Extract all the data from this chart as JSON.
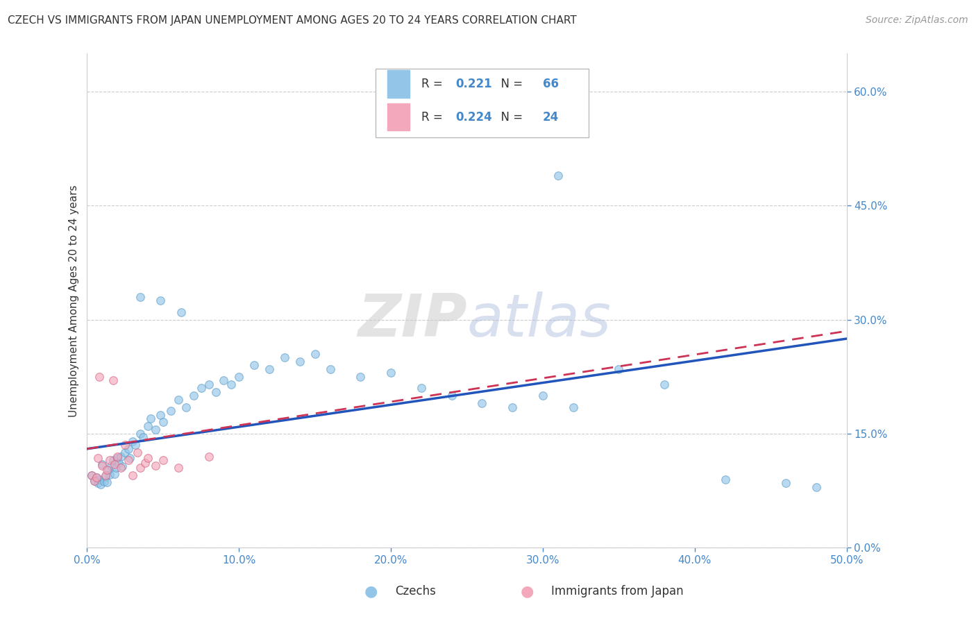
{
  "title": "CZECH VS IMMIGRANTS FROM JAPAN UNEMPLOYMENT AMONG AGES 20 TO 24 YEARS CORRELATION CHART",
  "source": "Source: ZipAtlas.com",
  "ylabel": "Unemployment Among Ages 20 to 24 years",
  "xlim": [
    0.0,
    0.5
  ],
  "ylim": [
    0.0,
    0.65
  ],
  "x_ticks": [
    0.0,
    0.1,
    0.2,
    0.3,
    0.4,
    0.5
  ],
  "y_ticks": [
    0.0,
    0.15,
    0.3,
    0.45,
    0.6
  ],
  "czech_color": "#92C5E8",
  "czech_edge_color": "#5A9BC8",
  "japan_color": "#F4A8BC",
  "japan_edge_color": "#D46080",
  "trend_czech_color": "#2255BB",
  "trend_japan_color": "#CC3355",
  "legend_r_czech": "0.221",
  "legend_n_czech": "66",
  "legend_r_japan": "0.224",
  "legend_n_japan": "24",
  "legend_label_czech": "Czechs",
  "legend_label_japan": "Immigrants from Japan",
  "czech_x": [
    0.003,
    0.005,
    0.006,
    0.007,
    0.008,
    0.009,
    0.01,
    0.011,
    0.012,
    0.013,
    0.014,
    0.015,
    0.016,
    0.017,
    0.018,
    0.019,
    0.02,
    0.021,
    0.022,
    0.023,
    0.025,
    0.027,
    0.028,
    0.03,
    0.032,
    0.035,
    0.037,
    0.04,
    0.042,
    0.045,
    0.048,
    0.05,
    0.055,
    0.06,
    0.065,
    0.07,
    0.075,
    0.08,
    0.085,
    0.09,
    0.095,
    0.1,
    0.11,
    0.12,
    0.13,
    0.14,
    0.15,
    0.16,
    0.18,
    0.2,
    0.22,
    0.24,
    0.26,
    0.28,
    0.3,
    0.32,
    0.27,
    0.31,
    0.35,
    0.38,
    0.42,
    0.46,
    0.48,
    0.035,
    0.048,
    0.062
  ],
  "czech_y": [
    0.095,
    0.088,
    0.092,
    0.085,
    0.09,
    0.083,
    0.11,
    0.087,
    0.093,
    0.086,
    0.102,
    0.096,
    0.108,
    0.115,
    0.097,
    0.105,
    0.118,
    0.112,
    0.12,
    0.107,
    0.125,
    0.13,
    0.118,
    0.14,
    0.135,
    0.15,
    0.145,
    0.16,
    0.17,
    0.155,
    0.175,
    0.165,
    0.18,
    0.195,
    0.185,
    0.2,
    0.21,
    0.215,
    0.205,
    0.22,
    0.215,
    0.225,
    0.24,
    0.235,
    0.25,
    0.245,
    0.255,
    0.235,
    0.225,
    0.23,
    0.21,
    0.2,
    0.19,
    0.185,
    0.2,
    0.185,
    0.615,
    0.49,
    0.235,
    0.215,
    0.09,
    0.085,
    0.08,
    0.33,
    0.325,
    0.31
  ],
  "japan_x": [
    0.003,
    0.005,
    0.006,
    0.007,
    0.008,
    0.01,
    0.012,
    0.013,
    0.015,
    0.017,
    0.018,
    0.02,
    0.022,
    0.025,
    0.027,
    0.03,
    0.033,
    0.035,
    0.038,
    0.04,
    0.045,
    0.05,
    0.06,
    0.08
  ],
  "japan_y": [
    0.095,
    0.088,
    0.092,
    0.118,
    0.225,
    0.108,
    0.095,
    0.102,
    0.115,
    0.22,
    0.11,
    0.12,
    0.105,
    0.135,
    0.115,
    0.095,
    0.125,
    0.105,
    0.112,
    0.118,
    0.108,
    0.115,
    0.105,
    0.12
  ],
  "czech_trend_start_y": 0.13,
  "czech_trend_end_y": 0.275,
  "japan_trend_start_y": 0.13,
  "japan_trend_end_y": 0.285,
  "marker_size": 70,
  "marker_alpha": 0.65,
  "grid_color": "#CCCCCC",
  "tick_color": "#4488CC",
  "background_color": "#FFFFFF",
  "title_fontsize": 11,
  "axis_label_fontsize": 11,
  "tick_fontsize": 11,
  "legend_fontsize": 13,
  "source_fontsize": 10
}
